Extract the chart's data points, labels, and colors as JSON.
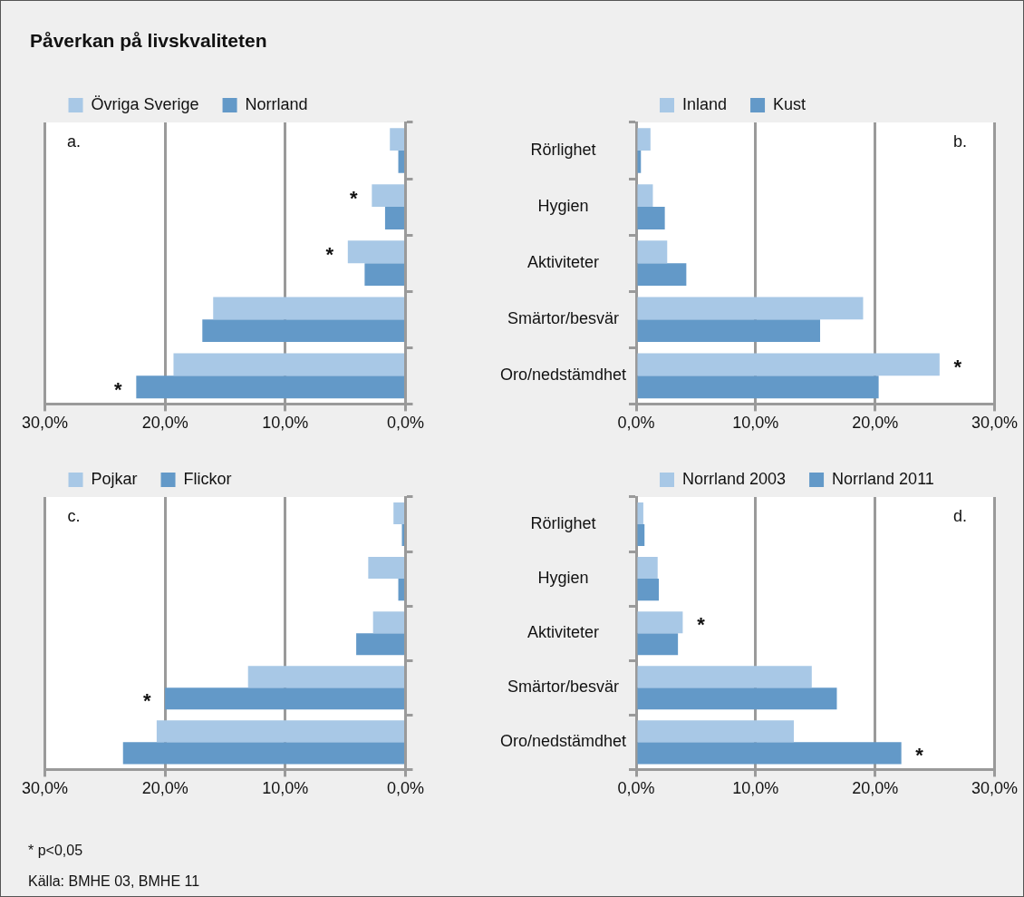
{
  "chart_data": [
    {
      "type": "bar",
      "orientation": "horizontal",
      "title": "Påverkan på livskvaliteten",
      "categories": [
        "Rörlighet",
        "Hygien",
        "Aktiviteter",
        "Smärtor/besvär",
        "Oro/nedstämdhet"
      ],
      "series": [
        {
          "name": "Övriga Sverige",
          "color": "#a8c8e6",
          "values": [
            1.3,
            2.8,
            4.8,
            16.0,
            19.3
          ]
        },
        {
          "name": "Norrland",
          "color": "#6399c8",
          "values": [
            0.6,
            1.7,
            3.4,
            16.9,
            22.4
          ]
        }
      ],
      "xlim": [
        30,
        0
      ],
      "xticks": [
        {
          "value": 30,
          "label": "30,0%"
        },
        {
          "value": 20,
          "label": "20,0%"
        },
        {
          "value": 10,
          "label": "10,0%"
        },
        {
          "value": 0,
          "label": "0,0%"
        }
      ],
      "grid": "x",
      "legend": "top left",
      "tick_labels": "x",
      "annotations": [
        "a.",
        {
          "text": "*",
          "x": 2.8,
          "y": "Hygien"
        },
        {
          "text": "*",
          "x": 4.8,
          "y": "Aktiviteter"
        },
        {
          "text": "*",
          "x": 22.4,
          "y": "Oro/nedstämdhet"
        }
      ]
    },
    {
      "type": "bar",
      "orientation": "horizontal",
      "categories": [
        "Rörlighet",
        "Hygien",
        "Aktiviteter",
        "Smärtor/besvär",
        "Oro/nedstämdhet"
      ],
      "series": [
        {
          "name": "Inland",
          "color": "#a8c8e6",
          "values": [
            1.2,
            1.4,
            2.6,
            19.0,
            25.4
          ]
        },
        {
          "name": "Kust",
          "color": "#6399c8",
          "values": [
            0.4,
            2.4,
            4.2,
            15.4,
            20.3
          ]
        }
      ],
      "xlim": [
        0,
        30
      ],
      "xticks": [
        {
          "value": 0,
          "label": "0,0%"
        },
        {
          "value": 10,
          "label": "10,0%"
        },
        {
          "value": 20,
          "label": "20,0%"
        },
        {
          "value": 30,
          "label": "30,0%"
        }
      ],
      "grid": "x",
      "legend": "top left",
      "annotations": [
        "b.",
        {
          "text": "*",
          "x": 25.4,
          "y": "Oro/nedstämdhet"
        }
      ]
    },
    {
      "type": "bar",
      "orientation": "horizontal",
      "categories": [
        "Rörlighet",
        "Hygien",
        "Aktiviteter",
        "Smärtor/besvär",
        "Oro/nedstämdhet"
      ],
      "series": [
        {
          "name": "Pojkar",
          "color": "#a8c8e6",
          "values": [
            1.0,
            3.1,
            2.7,
            13.1,
            20.7
          ]
        },
        {
          "name": "Flickor",
          "color": "#6399c8",
          "values": [
            0.3,
            0.6,
            4.1,
            20.0,
            23.5
          ]
        }
      ],
      "xlim": [
        30,
        0
      ],
      "xticks": [
        {
          "value": 30,
          "label": "30,0%"
        },
        {
          "value": 20,
          "label": "20,0%"
        },
        {
          "value": 10,
          "label": "10,0%"
        },
        {
          "value": 0,
          "label": "0,0%"
        }
      ],
      "grid": "x",
      "legend": "top left",
      "tick_labels": "x",
      "annotations": [
        "c.",
        {
          "text": "*",
          "x": 20.0,
          "y": "Smärtor/besvär"
        },
        "* p<0,05",
        "Källa: BMHE 03, BMHE 11"
      ]
    },
    {
      "type": "bar",
      "orientation": "horizontal",
      "categories": [
        "Rörlighet",
        "Hygien",
        "Aktiviteter",
        "Smärtor/besvär",
        "Oro/nedstämdhet"
      ],
      "series": [
        {
          "name": "Norrland 2003",
          "color": "#a8c8e6",
          "values": [
            0.6,
            1.8,
            3.9,
            14.7,
            13.2
          ]
        },
        {
          "name": "Norrland 2011",
          "color": "#6399c8",
          "values": [
            0.7,
            1.9,
            3.5,
            16.8,
            22.2
          ]
        }
      ],
      "xlim": [
        0,
        30
      ],
      "xticks": [
        {
          "value": 0,
          "label": "0,0%"
        },
        {
          "value": 10,
          "label": "10,0%"
        },
        {
          "value": 20,
          "label": "20,0%"
        },
        {
          "value": 30,
          "label": "30,0%"
        }
      ],
      "grid": "x",
      "legend": "top left",
      "annotations": [
        "d.",
        {
          "text": "*",
          "x": 3.9,
          "y": "Aktiviteter"
        },
        {
          "text": "*",
          "x": 22.2,
          "y": "Oro/nedstämdhet"
        }
      ]
    }
  ]
}
